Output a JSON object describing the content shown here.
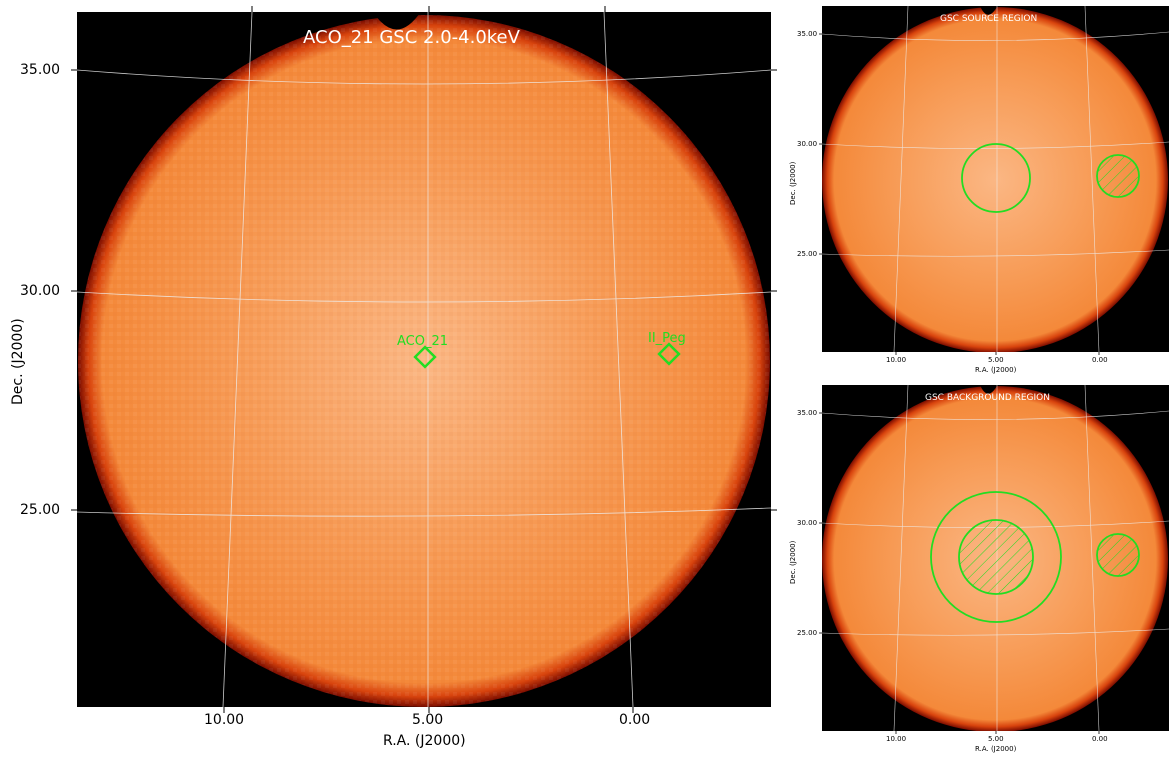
{
  "main": {
    "title": "ACO_21 GSC 2.0-4.0keV",
    "xlabel": "R.A. (J2000)",
    "ylabel": "Dec. (J2000)",
    "xticks": [
      "10.00",
      "5.00",
      "0.00"
    ],
    "yticks": [
      "35.00",
      "30.00",
      "25.00"
    ],
    "sources": [
      {
        "name": "ACO_21"
      },
      {
        "name": "II_Peg"
      }
    ]
  },
  "source_panel": {
    "title": "GSC SOURCE REGION",
    "xlabel": "R.A. (J2000)",
    "ylabel": "Dec. (J2000)",
    "xticks": [
      "10.00",
      "5.00",
      "0.00"
    ],
    "yticks": [
      "35.00",
      "30.00",
      "25.00"
    ]
  },
  "background_panel": {
    "title": "GSC BACKGROUND REGION",
    "xlabel": "R.A. (J2000)",
    "ylabel": "Dec. (J2000)",
    "xticks": [
      "10.00",
      "5.00",
      "0.00"
    ],
    "yticks": [
      "35.00",
      "30.00",
      "25.00"
    ]
  },
  "colors": {
    "image_fill": "#f58a3a",
    "image_edge": "#b31a00",
    "background": "#000000",
    "region": "#22dd22",
    "grid": "#e8e8e8",
    "title_text": "#ffffff"
  }
}
